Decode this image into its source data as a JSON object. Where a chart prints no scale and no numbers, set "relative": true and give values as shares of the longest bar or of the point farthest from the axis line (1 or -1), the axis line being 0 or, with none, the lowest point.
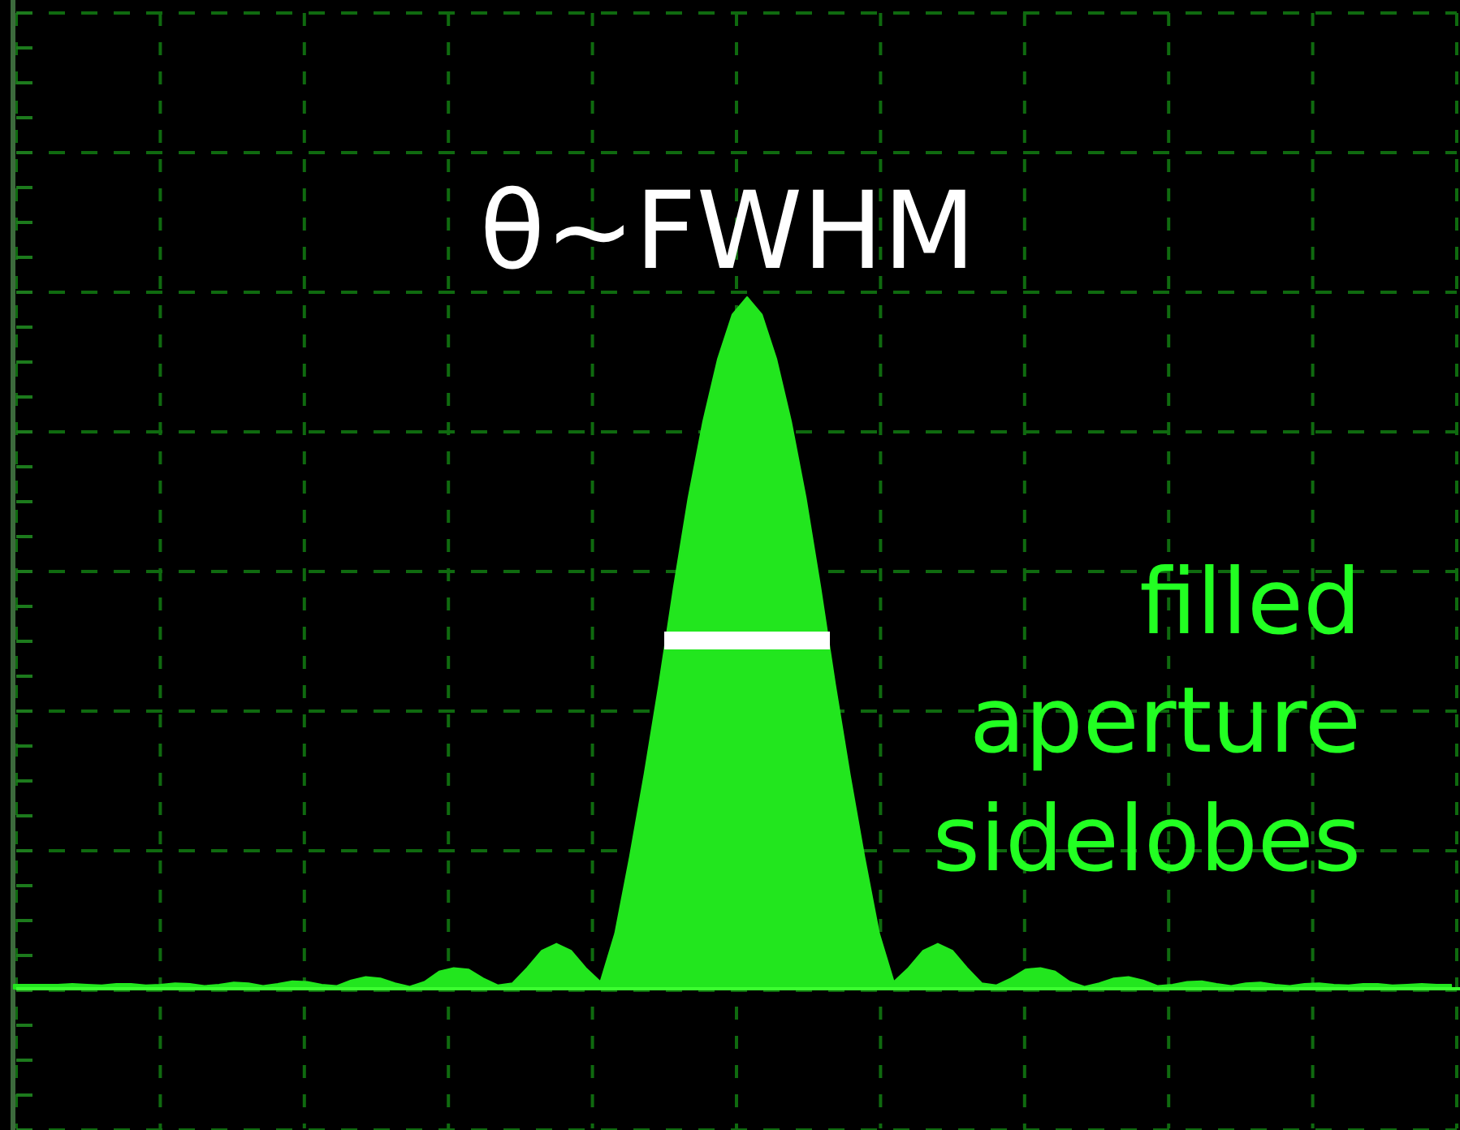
{
  "chart_data": {
    "type": "area",
    "relative": true,
    "color": "#22e61e",
    "grid": true,
    "annotations": [
      "θ~FWHM",
      "filled aperture sidelobes"
    ],
    "categories": [
      null,
      null,
      null,
      null,
      null,
      null,
      null,
      null,
      null,
      null,
      null,
      null,
      null,
      null,
      null,
      null,
      null,
      null,
      null,
      null,
      null,
      null,
      null,
      null,
      null,
      null,
      null,
      null,
      null,
      null,
      null,
      null,
      null,
      null,
      null,
      null,
      null,
      null,
      null,
      null,
      null,
      null,
      null,
      null,
      null,
      null,
      null,
      null,
      null,
      null,
      null,
      null,
      null,
      null,
      null,
      null,
      null,
      null,
      null,
      null,
      null,
      null,
      null,
      null,
      null,
      null,
      null,
      null,
      null,
      null,
      null,
      null,
      null,
      null,
      null,
      null,
      null,
      null,
      null,
      null,
      null,
      null,
      null,
      null,
      null,
      null,
      null,
      null,
      null,
      null,
      null,
      null,
      null,
      null,
      null,
      null,
      null,
      null,
      null
    ],
    "values": [
      0.006,
      0.006,
      0.006,
      0.006,
      0.007,
      0.006,
      0.005,
      0.007,
      0.007,
      0.005,
      0.006,
      0.008,
      0.007,
      0.004,
      0.006,
      0.009,
      0.008,
      0.004,
      0.007,
      0.011,
      0.01,
      0.006,
      0.004,
      0.012,
      0.017,
      0.015,
      0.008,
      0.003,
      0.01,
      0.025,
      0.03,
      0.028,
      0.015,
      0.005,
      0.008,
      0.03,
      0.055,
      0.065,
      0.055,
      0.03,
      0.01,
      0.08,
      0.19,
      0.31,
      0.44,
      0.58,
      0.71,
      0.82,
      0.91,
      0.975,
      1,
      0.975,
      0.91,
      0.82,
      0.71,
      0.58,
      0.44,
      0.31,
      0.19,
      0.08,
      0.01,
      0.03,
      0.055,
      0.065,
      0.055,
      0.03,
      0.008,
      0.005,
      0.015,
      0.028,
      0.03,
      0.025,
      0.01,
      0.003,
      0.008,
      0.015,
      0.017,
      0.012,
      0.004,
      0.006,
      0.01,
      0.011,
      0.007,
      0.004,
      0.008,
      0.009,
      0.006,
      0.004,
      0.007,
      0.008,
      0.006,
      0.005,
      0.007,
      0.007,
      0.005,
      0.006,
      0.007,
      0.006,
      0.006
    ]
  }
}
